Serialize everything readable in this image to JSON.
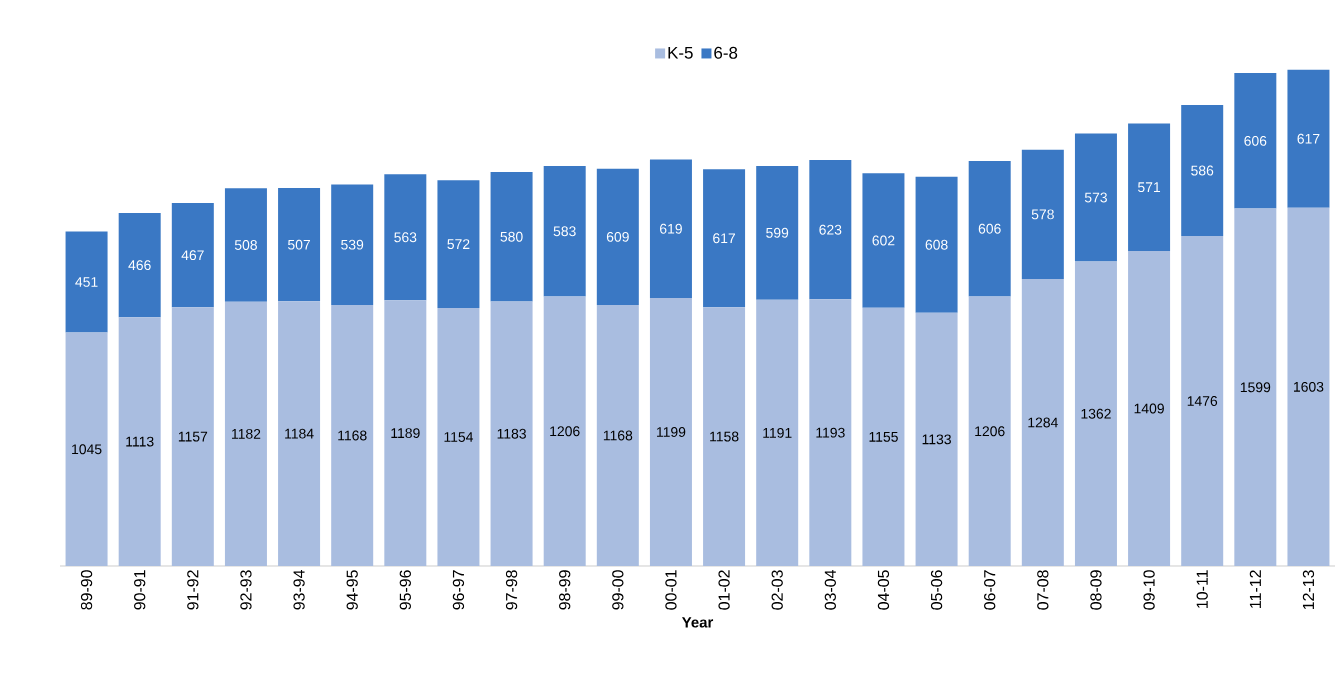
{
  "chart_data": {
    "type": "bar",
    "stacked": true,
    "xlabel": "Year",
    "categories": [
      "89-90",
      "90-91",
      "91-92",
      "92-93",
      "93-94",
      "94-95",
      "95-96",
      "96-97",
      "97-98",
      "98-99",
      "99-00",
      "00-01",
      "01-02",
      "02-03",
      "03-04",
      "04-05",
      "05-06",
      "06-07",
      "07-08",
      "08-09",
      "09-10",
      "10-11",
      "11-12",
      "12-13"
    ],
    "series": [
      {
        "name": "K-5",
        "color": "#a9bde0",
        "values": [
          1045,
          1113,
          1157,
          1182,
          1184,
          1168,
          1189,
          1154,
          1183,
          1206,
          1168,
          1199,
          1158,
          1191,
          1193,
          1155,
          1133,
          1206,
          1284,
          1362,
          1409,
          1476,
          1599,
          1603
        ]
      },
      {
        "name": "6-8",
        "color": "#3a78c4",
        "values": [
          451,
          466,
          467,
          508,
          507,
          539,
          563,
          572,
          580,
          583,
          609,
          619,
          617,
          599,
          623,
          602,
          608,
          606,
          578,
          573,
          571,
          586,
          606,
          617
        ]
      }
    ],
    "tick_labels": "x",
    "data_labels": true,
    "legend": "top"
  }
}
